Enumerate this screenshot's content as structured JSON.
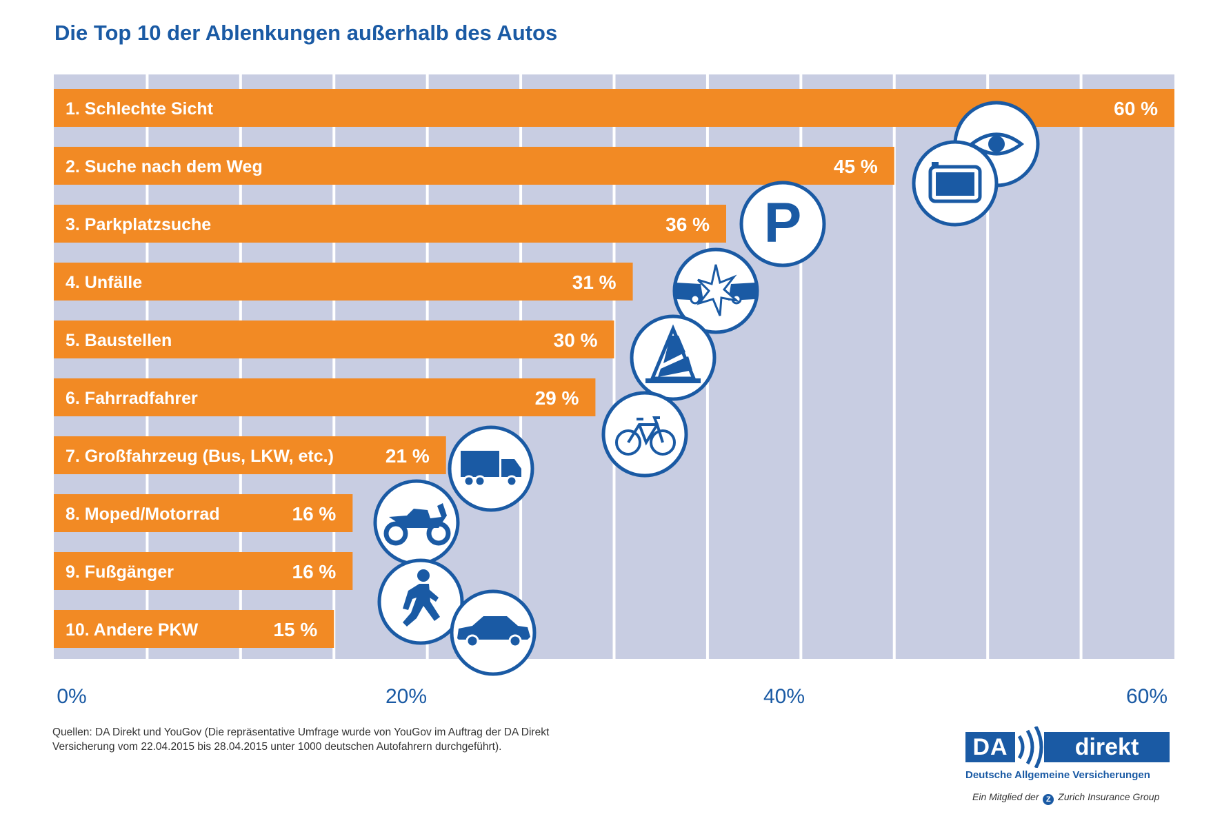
{
  "header": {
    "title": "Die Top 10 der Ablenkungen außerhalb des Autos"
  },
  "chart_data": {
    "type": "bar",
    "orientation": "horizontal",
    "categories": [
      "1. Schlechte Sicht",
      "2. Suche nach dem Weg",
      "3. Parkplatzsuche",
      "4. Unfälle",
      "5. Baustellen",
      "6. Fahrradfahrer",
      "7. Großfahrzeug (Bus, LKW, etc.)",
      "8. Moped/Motorrad",
      "9. Fußgänger",
      "10. Andere PKW"
    ],
    "values": [
      60,
      45,
      36,
      31,
      30,
      29,
      21,
      16,
      16,
      15
    ],
    "value_labels": [
      "60 %",
      "45 %",
      "36 %",
      "31 %",
      "30 %",
      "29 %",
      "21 %",
      "16 %",
      "16 %",
      "15 %"
    ],
    "icons": [
      "eye-icon",
      "navigation-device-icon",
      "parking-icon",
      "car-crash-icon",
      "traffic-cone-icon",
      "bicycle-icon",
      "truck-icon",
      "motorcycle-icon",
      "pedestrian-icon",
      "car-icon"
    ],
    "x_ticks": [
      0,
      20,
      40,
      60
    ],
    "x_tick_labels": [
      "0%",
      "20%",
      "40%",
      "60%"
    ],
    "xlim": [
      0,
      60
    ],
    "grid": true,
    "colors": {
      "bar": "#f28a24",
      "background": "#c8cde2",
      "icon": "#1a5aa4",
      "text": "#1a5aa4"
    }
  },
  "footer": {
    "source": "Quellen: DA Direkt und YouGov (Die repräsentative Umfrage wurde von YouGov im Auftrag der DA Direkt Versicherung vom 22.04.2015 bis 28.04.2015 unter 1000 deutschen Autofahrern durchgeführt).",
    "logo_left": "DA",
    "logo_right": "direkt",
    "logo_sub": "Deutsche Allgemeine Versicherungen",
    "member_prefix": "Ein Mitglied der",
    "member_badge": "Z",
    "member_group": "Zurich Insurance Group"
  }
}
